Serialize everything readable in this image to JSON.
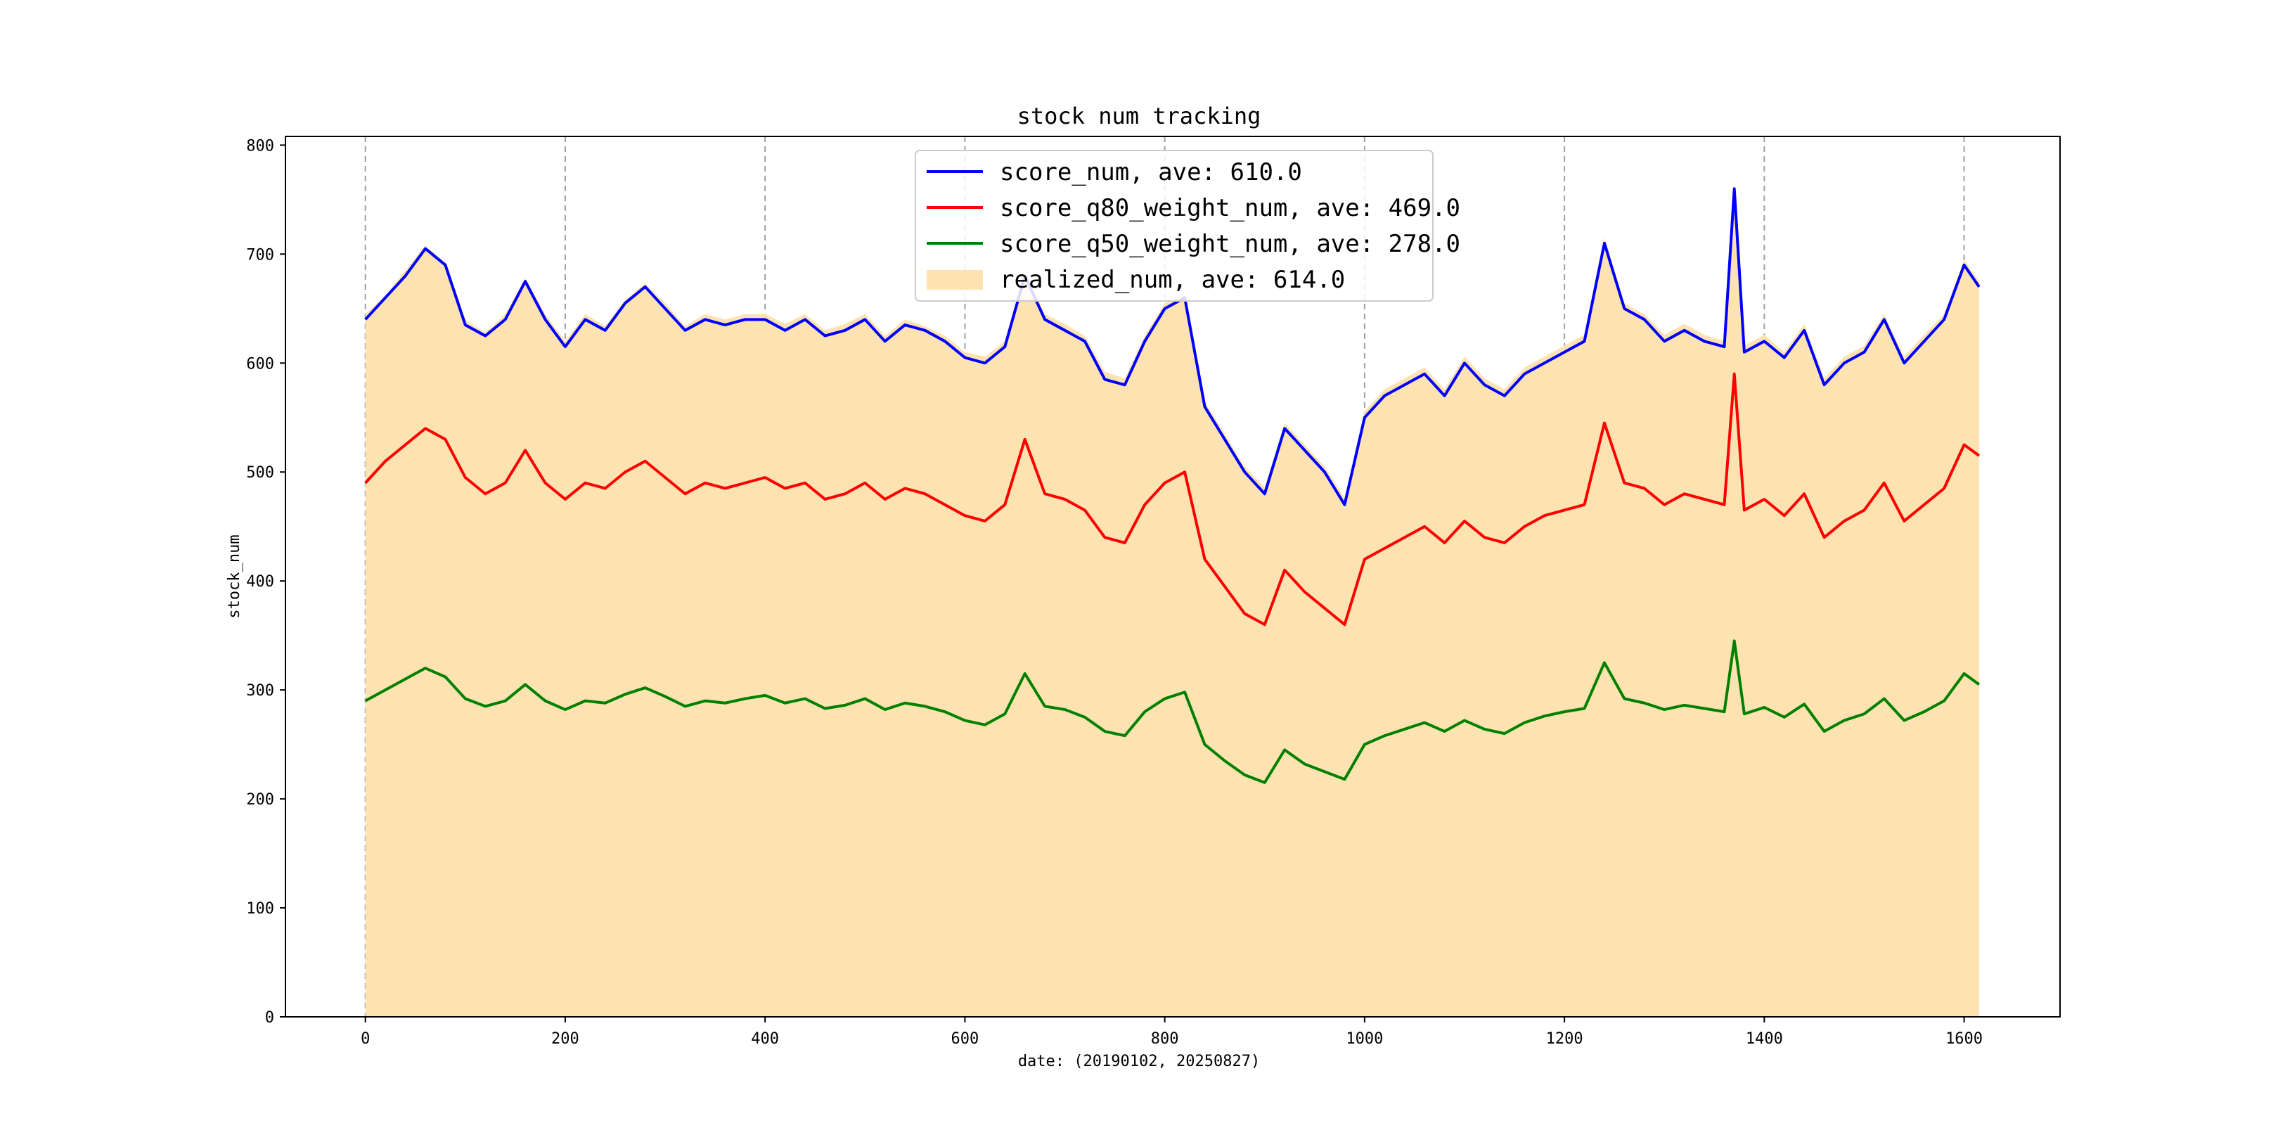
{
  "chart_data": {
    "type": "line",
    "title": "stock num tracking",
    "xlabel": "date: (20190102, 20250827)",
    "ylabel": "stock_num",
    "xlim": [
      -80,
      1696
    ],
    "ylim": [
      0,
      808
    ],
    "x_ticks": [
      0,
      200,
      400,
      600,
      800,
      1000,
      1200,
      1400,
      1600
    ],
    "y_ticks": [
      0,
      100,
      200,
      300,
      400,
      500,
      600,
      700,
      800
    ],
    "grid": "x-only, dashed",
    "legend_position": "top-center",
    "x": [
      0,
      20,
      40,
      60,
      80,
      100,
      120,
      140,
      160,
      180,
      200,
      220,
      240,
      260,
      280,
      300,
      320,
      340,
      360,
      380,
      400,
      420,
      440,
      460,
      480,
      500,
      520,
      540,
      560,
      580,
      600,
      620,
      640,
      660,
      680,
      700,
      720,
      740,
      760,
      780,
      800,
      820,
      840,
      860,
      880,
      900,
      920,
      940,
      960,
      980,
      1000,
      1020,
      1040,
      1060,
      1080,
      1100,
      1120,
      1140,
      1160,
      1180,
      1200,
      1220,
      1240,
      1260,
      1280,
      1300,
      1320,
      1340,
      1360,
      1370,
      1380,
      1400,
      1420,
      1440,
      1460,
      1480,
      1500,
      1520,
      1540,
      1560,
      1580,
      1600,
      1615
    ],
    "series": [
      {
        "name": "score_num, ave: 610.0",
        "kind": "line",
        "color": "#0000ff",
        "values": [
          640,
          660,
          680,
          705,
          690,
          635,
          625,
          640,
          675,
          640,
          615,
          640,
          630,
          655,
          670,
          650,
          630,
          640,
          635,
          640,
          640,
          630,
          640,
          625,
          630,
          640,
          620,
          635,
          630,
          620,
          605,
          600,
          615,
          680,
          640,
          630,
          620,
          585,
          580,
          620,
          650,
          660,
          560,
          530,
          500,
          480,
          540,
          520,
          500,
          470,
          550,
          570,
          580,
          590,
          570,
          600,
          580,
          570,
          590,
          600,
          610,
          620,
          710,
          650,
          640,
          620,
          630,
          620,
          615,
          760,
          610,
          620,
          605,
          630,
          580,
          600,
          610,
          640,
          600,
          620,
          640,
          690,
          670
        ]
      },
      {
        "name": "score_q80_weight_num, ave: 469.0",
        "kind": "line",
        "color": "#ff0000",
        "values": [
          490,
          510,
          525,
          540,
          530,
          495,
          480,
          490,
          520,
          490,
          475,
          490,
          485,
          500,
          510,
          495,
          480,
          490,
          485,
          490,
          495,
          485,
          490,
          475,
          480,
          490,
          475,
          485,
          480,
          470,
          460,
          455,
          470,
          530,
          480,
          475,
          465,
          440,
          435,
          470,
          490,
          500,
          420,
          395,
          370,
          360,
          410,
          390,
          375,
          360,
          420,
          430,
          440,
          450,
          435,
          455,
          440,
          435,
          450,
          460,
          465,
          470,
          545,
          490,
          485,
          470,
          480,
          475,
          470,
          590,
          465,
          475,
          460,
          480,
          440,
          455,
          465,
          490,
          455,
          470,
          485,
          525,
          515
        ]
      },
      {
        "name": "score_q50_weight_num, ave: 278.0",
        "kind": "line",
        "color": "#008000",
        "values": [
          290,
          300,
          310,
          320,
          312,
          292,
          285,
          290,
          305,
          290,
          282,
          290,
          288,
          296,
          302,
          294,
          285,
          290,
          288,
          292,
          295,
          288,
          292,
          283,
          286,
          292,
          282,
          288,
          285,
          280,
          272,
          268,
          278,
          315,
          285,
          282,
          275,
          262,
          258,
          280,
          292,
          298,
          250,
          235,
          222,
          215,
          245,
          232,
          225,
          218,
          250,
          258,
          264,
          270,
          262,
          272,
          264,
          260,
          270,
          276,
          280,
          283,
          325,
          292,
          288,
          282,
          286,
          283,
          280,
          345,
          278,
          284,
          275,
          287,
          262,
          272,
          278,
          292,
          272,
          280,
          290,
          315,
          305
        ]
      },
      {
        "name": "realized_num, ave: 614.0",
        "kind": "area",
        "color": "#fde3b2",
        "values": [
          645,
          662,
          685,
          708,
          692,
          640,
          628,
          645,
          678,
          645,
          620,
          645,
          634,
          658,
          673,
          655,
          634,
          645,
          640,
          645,
          645,
          636,
          645,
          630,
          636,
          645,
          625,
          640,
          634,
          625,
          610,
          606,
          620,
          684,
          645,
          636,
          625,
          592,
          586,
          625,
          655,
          664,
          565,
          535,
          505,
          486,
          545,
          525,
          505,
          476,
          556,
          576,
          586,
          596,
          576,
          606,
          586,
          576,
          596,
          606,
          616,
          626,
          715,
          655,
          645,
          626,
          636,
          626,
          620,
          765,
          616,
          626,
          610,
          636,
          586,
          606,
          616,
          645,
          606,
          626,
          645,
          695,
          675
        ]
      }
    ]
  }
}
